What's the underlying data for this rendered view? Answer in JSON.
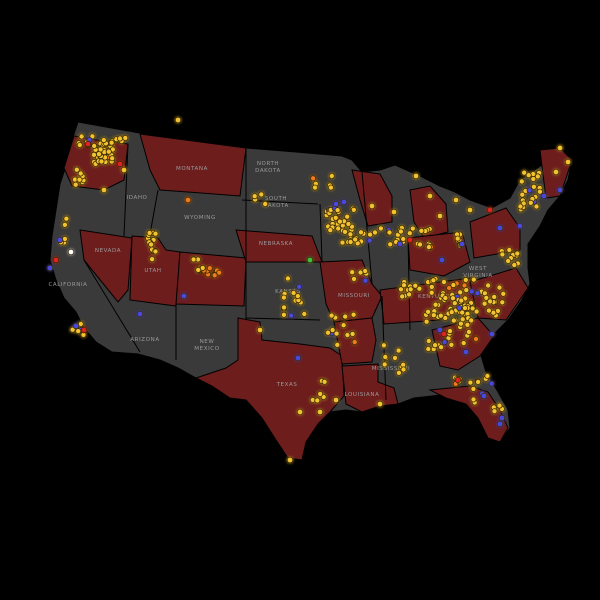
{
  "colors": {
    "background": "#000000",
    "state_dark": "#3a3a3a",
    "state_red": "#6e1d1d",
    "point_yellow": "#f2c230",
    "point_blue": "#4a4ae0",
    "point_orange": "#f07a1a",
    "point_red": "#e02020",
    "point_green": "#40c040",
    "point_white": "#ffffff"
  },
  "state_labels": {
    "montana": "MONTANA",
    "north_dakota_1": "NORTH",
    "north_dakota_2": "DAKOTA",
    "south_dakota_1": "SOUTH",
    "south_dakota_2": "DAKOTA",
    "idaho": "IDAHO",
    "wyoming": "WYOMING",
    "nevada": "NEVADA",
    "utah": "UTAH",
    "california": "CALIFORNIA",
    "nebraska": "NEBRASKA",
    "kansas": "KANSAS",
    "missouri": "MISSOURI",
    "arizona": "ARIZONA",
    "new_mexico_1": "NEW",
    "new_mexico_2": "MEXICO",
    "texas": "TEXAS",
    "louisiana": "LOUISIANA",
    "mississippi": "MISSISSIPPI",
    "kentucky": "KENTUCKY",
    "west_virginia_1": "WEST",
    "west_virginia_2": "VIRGINIA"
  },
  "point_categories": [
    "yellow",
    "blue",
    "orange",
    "red",
    "green",
    "white"
  ]
}
